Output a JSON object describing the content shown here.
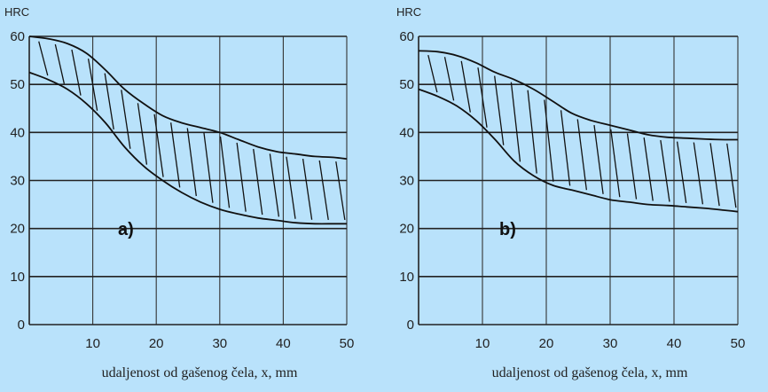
{
  "chart_data": [
    {
      "type": "area",
      "panel_label": "a)",
      "ylabel": "HRC",
      "xlabel": "udaljenost od gašenog čela, x, mm",
      "xlim": [
        0,
        50
      ],
      "ylim": [
        0,
        60
      ],
      "xticks": [
        10,
        20,
        30,
        40,
        50
      ],
      "yticks": [
        0,
        10,
        20,
        30,
        40,
        50,
        60
      ],
      "grid": true,
      "series": [
        {
          "x": [
            0,
            3,
            6,
            9,
            12,
            15,
            18,
            21,
            24,
            27,
            30,
            33,
            36,
            39,
            42,
            45,
            48,
            50
          ],
          "values": [
            60,
            59.5,
            58.5,
            56.5,
            53,
            49,
            46,
            43.5,
            42,
            41,
            40,
            38.5,
            37,
            36,
            35.5,
            35,
            34.8,
            34.5
          ]
        },
        {
          "x": [
            0,
            3,
            6,
            9,
            12,
            15,
            18,
            21,
            24,
            27,
            30,
            33,
            36,
            39,
            42,
            45,
            48,
            50
          ],
          "values": [
            52.5,
            51,
            49,
            46,
            42,
            37,
            33,
            30,
            27.5,
            25.5,
            24,
            23,
            22.2,
            21.7,
            21.2,
            21,
            21,
            21
          ]
        }
      ]
    },
    {
      "type": "area",
      "panel_label": "b)",
      "ylabel": "HRC",
      "xlabel": "udaljenost od gašenog čela, x, mm",
      "xlim": [
        0,
        50
      ],
      "ylim": [
        0,
        60
      ],
      "xticks": [
        10,
        20,
        30,
        40,
        50
      ],
      "yticks": [
        0,
        10,
        20,
        30,
        40,
        50,
        60
      ],
      "grid": true,
      "series": [
        {
          "x": [
            0,
            3,
            6,
            9,
            12,
            15,
            18,
            21,
            24,
            27,
            30,
            33,
            36,
            39,
            42,
            45,
            48,
            50
          ],
          "values": [
            57,
            56.8,
            56,
            54.5,
            52.5,
            51,
            49,
            46.5,
            44,
            42.5,
            41.5,
            40.5,
            39.5,
            39,
            38.8,
            38.6,
            38.5,
            38.5
          ]
        },
        {
          "x": [
            0,
            3,
            6,
            9,
            12,
            15,
            18,
            21,
            24,
            27,
            30,
            33,
            36,
            39,
            42,
            45,
            48,
            50
          ],
          "values": [
            49,
            47.5,
            45.5,
            42.5,
            38.5,
            34,
            31,
            29,
            28,
            27,
            26,
            25.5,
            25,
            24.8,
            24.5,
            24.2,
            23.8,
            23.5
          ]
        }
      ]
    }
  ]
}
